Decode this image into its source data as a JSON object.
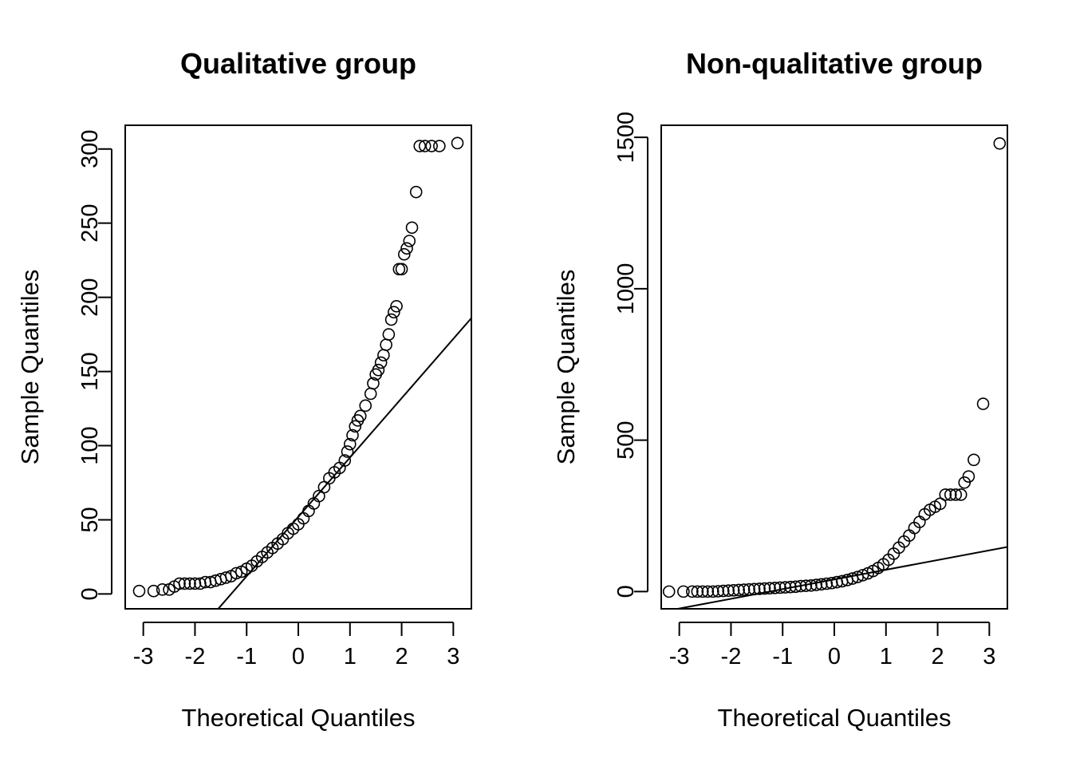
{
  "chart_data": [
    {
      "type": "scatter",
      "subtype": "normal-qq-plot",
      "title": "Qualitative group",
      "xlabel": "Theoretical Quantiles",
      "ylabel": "Sample Quantiles",
      "xlim": [
        -3.35,
        3.35
      ],
      "ylim": [
        -10,
        316
      ],
      "xticks": [
        -3,
        -2,
        -1,
        0,
        1,
        2,
        3
      ],
      "yticks": [
        0,
        50,
        100,
        150,
        200,
        250,
        300
      ],
      "grid": false,
      "reference_line": {
        "slope": 40,
        "intercept": 52
      },
      "series": [
        {
          "x": [
            -3.08,
            -2.8,
            -2.63,
            -2.5,
            -2.4,
            -2.3,
            -2.2,
            -2.1,
            -2.0,
            -1.9,
            -1.8,
            -1.7,
            -1.6,
            -1.5,
            -1.4,
            -1.3,
            -1.2,
            -1.1,
            -1.0,
            -0.9,
            -0.8,
            -0.7,
            -0.6,
            -0.5,
            -0.4,
            -0.3,
            -0.2,
            -0.1,
            0.0,
            0.1,
            0.2,
            0.3,
            0.4,
            0.5,
            0.6,
            0.7,
            0.8,
            0.9,
            0.95,
            1.0,
            1.05,
            1.1,
            1.15,
            1.2,
            1.3,
            1.4,
            1.45,
            1.5,
            1.55,
            1.6,
            1.65,
            1.7,
            1.75,
            1.8,
            1.85,
            1.9,
            1.95,
            2.0,
            2.05,
            2.1,
            2.15,
            2.2,
            2.28,
            2.35,
            2.45,
            2.58,
            2.73,
            3.08
          ],
          "y": [
            2,
            2,
            3,
            3,
            5,
            7,
            7,
            7,
            7,
            7,
            8,
            8,
            9,
            10,
            11,
            12,
            14,
            15,
            17,
            19,
            22,
            25,
            28,
            31,
            34,
            37,
            41,
            44,
            47,
            51,
            56,
            61,
            66,
            72,
            78,
            82,
            85,
            90,
            96,
            101,
            107,
            113,
            117,
            120,
            127,
            135,
            142,
            148,
            151,
            156,
            161,
            168,
            175,
            185,
            190,
            194,
            219,
            219,
            229,
            233,
            238,
            247,
            271,
            302,
            302,
            302,
            302,
            304
          ]
        }
      ]
    },
    {
      "type": "scatter",
      "subtype": "normal-qq-plot",
      "title": "Non-qualitative group",
      "xlabel": "Theoretical Quantiles",
      "ylabel": "Sample Quantiles",
      "xlim": [
        -3.35,
        3.35
      ],
      "ylim": [
        -57,
        1540
      ],
      "xticks": [
        -3,
        -2,
        -1,
        0,
        1,
        2,
        3
      ],
      "yticks": [
        0,
        500,
        1000,
        1500
      ],
      "grid": false,
      "reference_line": {
        "slope": 32,
        "intercept": 40
      },
      "series": [
        {
          "x": [
            -3.2,
            -2.92,
            -2.75,
            -2.65,
            -2.55,
            -2.45,
            -2.35,
            -2.25,
            -2.15,
            -2.05,
            -1.95,
            -1.85,
            -1.75,
            -1.65,
            -1.55,
            -1.45,
            -1.35,
            -1.25,
            -1.15,
            -1.05,
            -0.95,
            -0.85,
            -0.75,
            -0.65,
            -0.55,
            -0.45,
            -0.35,
            -0.25,
            -0.15,
            -0.05,
            0.05,
            0.15,
            0.25,
            0.35,
            0.45,
            0.55,
            0.65,
            0.75,
            0.85,
            0.95,
            1.05,
            1.15,
            1.25,
            1.35,
            1.45,
            1.55,
            1.65,
            1.75,
            1.85,
            1.95,
            2.05,
            2.15,
            2.25,
            2.35,
            2.45,
            2.52,
            2.6,
            2.7,
            2.88,
            3.2
          ],
          "y": [
            0,
            0,
            0,
            0,
            0,
            0,
            0,
            1,
            2,
            3,
            4,
            5,
            6,
            7,
            8,
            9,
            10,
            11,
            12,
            13,
            14,
            15,
            16,
            18,
            19,
            20,
            22,
            24,
            26,
            28,
            31,
            34,
            38,
            43,
            48,
            54,
            60,
            68,
            78,
            90,
            105,
            125,
            145,
            165,
            185,
            210,
            230,
            255,
            270,
            280,
            290,
            320,
            320,
            320,
            320,
            360,
            380,
            435,
            620,
            1480
          ]
        }
      ]
    }
  ]
}
